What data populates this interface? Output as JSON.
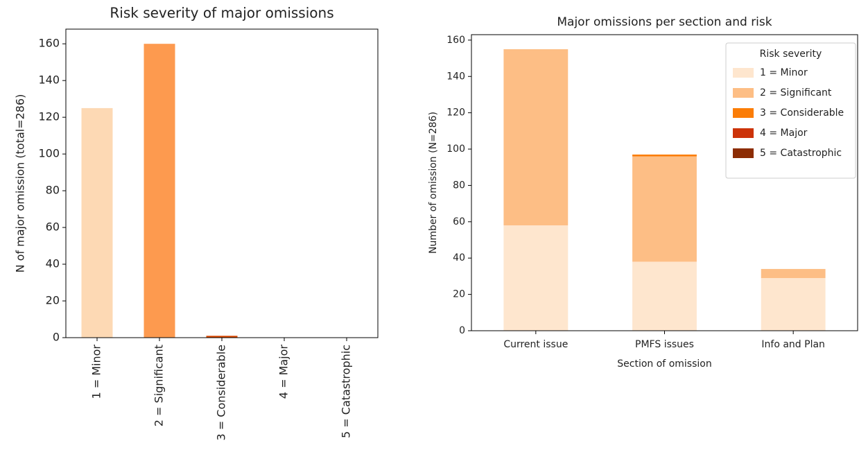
{
  "chart_data": [
    {
      "type": "bar",
      "title": "Risk severity of major omissions",
      "y_label": "N of major omission (total=286)",
      "categories": [
        "1 = Minor",
        "2 = Significant",
        "3 = Considerable",
        "4 = Major",
        "5 = Catastrophic"
      ],
      "values": [
        125,
        160,
        1,
        0,
        0
      ],
      "colors": [
        "#fdd9b4",
        "#fd9a4f",
        "#d94801",
        "#a63603",
        "#7f2704"
      ],
      "ylim": [
        0,
        168
      ],
      "yticks": [
        0,
        20,
        40,
        60,
        80,
        100,
        120,
        140,
        160
      ]
    },
    {
      "type": "stacked_bar",
      "title": "Major omissions per section and risk",
      "x_label": "Section of omission",
      "y_label": "Number of omission (N=286)",
      "categories": [
        "Current issue",
        "PMFS issues",
        "Info and Plan"
      ],
      "series": [
        {
          "name": "1 = Minor",
          "color": "#fee6ce",
          "values": [
            58,
            38,
            29
          ]
        },
        {
          "name": "2 = Significant",
          "color": "#fdbe85",
          "values": [
            97,
            58,
            5
          ]
        },
        {
          "name": "3 = Considerable",
          "color": "#fb7d07",
          "values": [
            0,
            1,
            0
          ]
        },
        {
          "name": "4 = Major",
          "color": "#cc3309",
          "values": [
            0,
            0,
            0
          ]
        },
        {
          "name": "5 = Catastrophic",
          "color": "#8c2d04",
          "values": [
            0,
            0,
            0
          ]
        }
      ],
      "legend_title": "Risk severity",
      "legend": "upper right",
      "ylim": [
        0,
        163
      ],
      "yticks": [
        0,
        20,
        40,
        60,
        80,
        100,
        120,
        140,
        160
      ]
    }
  ]
}
